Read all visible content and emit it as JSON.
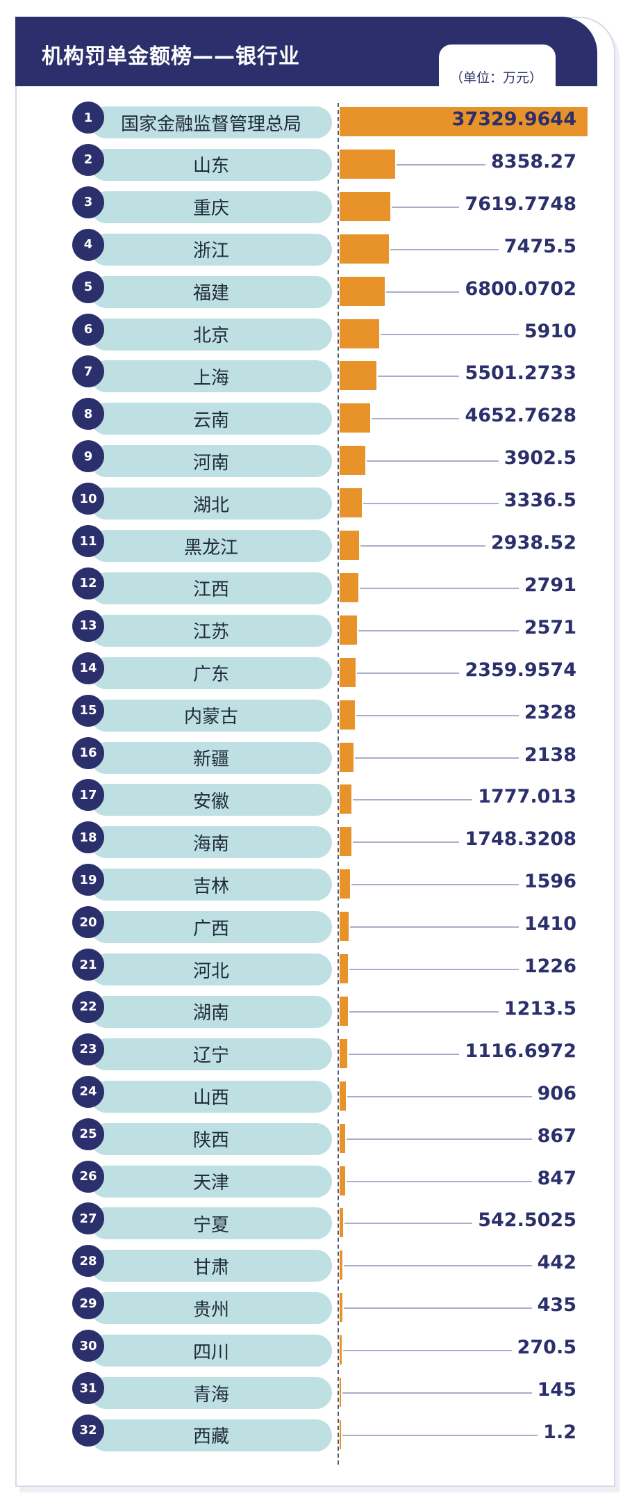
{
  "header": {
    "title": "机构罚单金额榜——银行业",
    "unit": "（单位：万元）"
  },
  "chart_data": {
    "type": "bar",
    "title": "机构罚单金额榜——银行业",
    "unit": "（单位：万元）",
    "orientation": "horizontal",
    "bar_color": "#e8922a",
    "label_pill_color": "#bfe0e2",
    "rank_color": "#2b2f6b",
    "xlim": [
      0,
      37329.9644
    ],
    "categories": [
      "国家金融监督管理总局",
      "山东",
      "重庆",
      "浙江",
      "福建",
      "北京",
      "上海",
      "云南",
      "河南",
      "湖北",
      "黑龙江",
      "江西",
      "江苏",
      "广东",
      "内蒙古",
      "新疆",
      "安徽",
      "海南",
      "吉林",
      "广西",
      "河北",
      "湖南",
      "辽宁",
      "山西",
      "陕西",
      "天津",
      "宁夏",
      "甘肃",
      "贵州",
      "四川",
      "青海",
      "西藏"
    ],
    "ranks": [
      "1",
      "2",
      "3",
      "4",
      "5",
      "6",
      "7",
      "8",
      "9",
      "10",
      "11",
      "12",
      "13",
      "14",
      "15",
      "16",
      "17",
      "18",
      "19",
      "20",
      "21",
      "22",
      "23",
      "24",
      "25",
      "26",
      "27",
      "28",
      "29",
      "30",
      "31",
      "32"
    ],
    "values": [
      37329.9644,
      8358.27,
      7619.7748,
      7475.5,
      6800.0702,
      5910,
      5501.2733,
      4652.7628,
      3902.5,
      3336.5,
      2938.52,
      2791,
      2571,
      2359.9574,
      2328,
      2138,
      1777.013,
      1748.3208,
      1596,
      1410,
      1226,
      1213.5,
      1116.6972,
      906,
      867,
      847,
      542.5025,
      442,
      435,
      270.5,
      145,
      1.2
    ],
    "value_labels": [
      "37329.9644",
      "8358.27",
      "7619.7748",
      "7475.5",
      "6800.0702",
      "5910",
      "5501.2733",
      "4652.7628",
      "3902.5",
      "3336.5",
      "2938.52",
      "2791",
      "2571",
      "2359.9574",
      "2328",
      "2138",
      "1777.013",
      "1748.3208",
      "1596",
      "1410",
      "1226",
      "1213.5",
      "1116.6972",
      "906",
      "867",
      "847",
      "542.5025",
      "442",
      "435",
      "270.5",
      "145",
      "1.2"
    ]
  }
}
